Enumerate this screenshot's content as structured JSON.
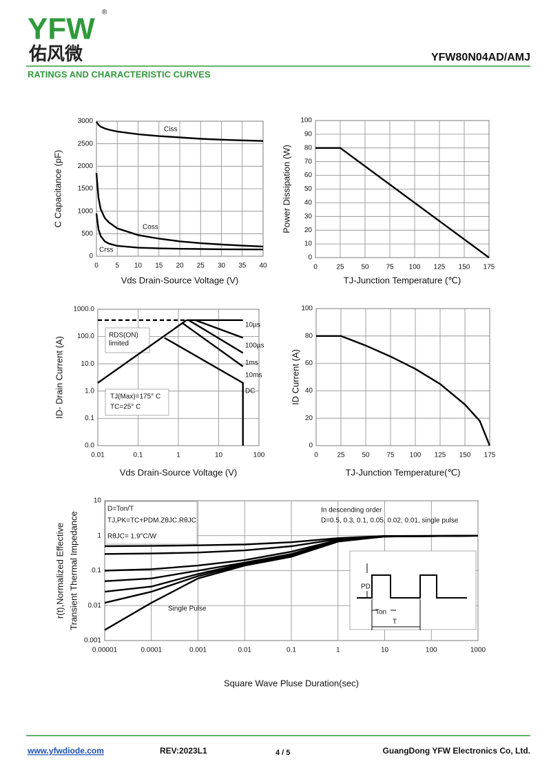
{
  "header": {
    "logo": "YFW",
    "logo_mark": "®",
    "logo_cn": "佑风微",
    "part": "YFW80N04AD/AMJ",
    "section": "RATINGS AND CHARACTERISTIC CURVES"
  },
  "chart_data": [
    {
      "type": "line",
      "xlabel": "Vds Drain-Source Voltage (V)",
      "ylabel": "C Capacitance (pF)",
      "xlim": [
        0,
        40
      ],
      "ylim": [
        0,
        3000
      ],
      "xticks": [
        0,
        5,
        10,
        15,
        20,
        25,
        30,
        35,
        40
      ],
      "yticks": [
        0,
        500,
        1000,
        1500,
        2000,
        2500,
        3000
      ],
      "grid": true,
      "color": "#000000",
      "x": [
        0,
        0.5,
        1,
        2,
        3,
        5,
        10,
        15,
        20,
        25,
        30,
        35,
        40
      ],
      "series": [
        {
          "name": "Ciss",
          "values": [
            2990,
            2920,
            2880,
            2840,
            2810,
            2770,
            2710,
            2670,
            2640,
            2610,
            2590,
            2575,
            2560
          ]
        },
        {
          "name": "Coss",
          "values": [
            1850,
            1300,
            1050,
            850,
            750,
            620,
            470,
            390,
            330,
            290,
            260,
            235,
            215
          ]
        },
        {
          "name": "Crss",
          "values": [
            950,
            600,
            450,
            330,
            280,
            230,
            190,
            175,
            165,
            160,
            155,
            152,
            150
          ]
        }
      ]
    },
    {
      "type": "line",
      "xlabel": "TJ-Junction Temperature (℃)",
      "ylabel": "Power Dissipation (W)",
      "xlim": [
        0,
        175
      ],
      "ylim": [
        0,
        100
      ],
      "xticks": [
        0,
        25,
        50,
        75,
        100,
        125,
        150,
        175
      ],
      "yticks": [
        0,
        10,
        20,
        30,
        40,
        50,
        60,
        70,
        80,
        90,
        100
      ],
      "grid": true,
      "color": "#000000",
      "x": [
        0,
        25,
        175
      ],
      "series": [
        {
          "values": [
            80,
            80,
            0
          ]
        }
      ]
    },
    {
      "type": "line",
      "xscale": "log",
      "yscale": "log",
      "xlabel": "Vds Drain-Source Voltage (V)",
      "ylabel": "ID- Drain Current (A)",
      "xlim": [
        0.01,
        100
      ],
      "ylim": [
        0.01,
        1000
      ],
      "xticks": [
        0.01,
        0.1,
        1,
        10,
        100
      ],
      "yticks": [
        {
          "value": 0.01,
          "label": "0.0"
        },
        {
          "value": 0.1,
          "label": "0.1"
        },
        {
          "value": 1,
          "label": "1.0"
        },
        {
          "value": 10,
          "label": "10.0"
        },
        {
          "value": 100,
          "label": "100.0"
        },
        {
          "value": 1000,
          "label": "1000.0"
        }
      ],
      "grid": true,
      "color": "#000000",
      "series": [
        {
          "x": [
            0.01,
            1.6
          ],
          "values": [
            2,
            400
          ]
        },
        {
          "x": [
            0.01,
            1.6
          ],
          "values": [
            400,
            400
          ],
          "dash": true
        },
        {
          "name": "10µs",
          "x": [
            1.6,
            40
          ],
          "values": [
            400,
            400
          ]
        },
        {
          "name": "100µs",
          "x": [
            2.6,
            40
          ],
          "values": [
            400,
            90
          ]
        },
        {
          "name": "1ms",
          "x": [
            1.8,
            40
          ],
          "values": [
            400,
            25
          ]
        },
        {
          "name": "10ms",
          "x": [
            1.3,
            40
          ],
          "values": [
            300,
            8
          ]
        },
        {
          "name": "DC",
          "x": [
            0.45,
            40,
            40
          ],
          "values": [
            90,
            2,
            0.01
          ]
        }
      ],
      "annotations": [
        "RDS(ON)",
        "limited",
        "TJ(Max)=175° C",
        "TC=25° C"
      ]
    },
    {
      "type": "line",
      "xlabel": "TJ-Junction Temperature(℃)",
      "ylabel": "ID  Current (A)",
      "xlim": [
        0,
        175
      ],
      "ylim": [
        0,
        100
      ],
      "xticks": [
        0,
        25,
        50,
        75,
        100,
        125,
        150,
        175
      ],
      "yticks": [
        0,
        20,
        40,
        60,
        80,
        100
      ],
      "grid": true,
      "color": "#000000",
      "x": [
        0,
        25,
        50,
        75,
        100,
        125,
        150,
        165,
        175
      ],
      "series": [
        {
          "values": [
            80,
            80,
            73,
            65,
            56,
            45,
            30,
            18,
            0
          ]
        }
      ]
    },
    {
      "type": "line",
      "xscale": "log",
      "yscale": "log",
      "xlabel": "Square Wave Pluse Duration(sec)",
      "ylabel": [
        "r(t),Normalized Effective",
        "Transient Thermal Impedance"
      ],
      "xlim": [
        1e-05,
        1000
      ],
      "ylim": [
        0.001,
        10
      ],
      "xticks": [
        1e-05,
        0.0001,
        0.001,
        0.01,
        0.1,
        1,
        10,
        100,
        1000
      ],
      "yticks": [
        0.001,
        0.01,
        0.1,
        1,
        10
      ],
      "grid": true,
      "color": "#000000",
      "x": [
        1e-05,
        0.0001,
        0.001,
        0.01,
        0.1,
        1,
        10,
        1000
      ],
      "series": [
        {
          "values": [
            0.5,
            0.51,
            0.53,
            0.56,
            0.65,
            0.85,
            0.98,
            1
          ]
        },
        {
          "values": [
            0.3,
            0.31,
            0.33,
            0.38,
            0.5,
            0.8,
            0.97,
            1
          ]
        },
        {
          "values": [
            0.1,
            0.11,
            0.14,
            0.2,
            0.35,
            0.75,
            0.96,
            1
          ]
        },
        {
          "values": [
            0.05,
            0.06,
            0.1,
            0.17,
            0.3,
            0.72,
            0.95,
            1
          ]
        },
        {
          "values": [
            0.025,
            0.035,
            0.08,
            0.16,
            0.27,
            0.7,
            0.95,
            1
          ]
        },
        {
          "values": [
            0.012,
            0.025,
            0.07,
            0.15,
            0.26,
            0.7,
            0.95,
            1
          ]
        },
        {
          "values": [
            0.002,
            0.012,
            0.06,
            0.14,
            0.25,
            0.68,
            0.95,
            1
          ]
        }
      ],
      "annotations": [
        "D=Ton/T",
        "TJ,PK=TC+PDM.ZθJC.RθJC",
        "RθJC= 1.9°C/W",
        "In descending order",
        "D=0.5, 0.3, 0.1, 0.05, 0.02, 0.01, single pulse",
        "Single Pulse",
        "PD",
        "Ton",
        "T"
      ]
    }
  ],
  "footer": {
    "url": "www.yfwdiode.com",
    "rev": "REV:2023L1",
    "page": "4 / 5",
    "company": "GuangDong YFW Electronics Co, Ltd."
  }
}
